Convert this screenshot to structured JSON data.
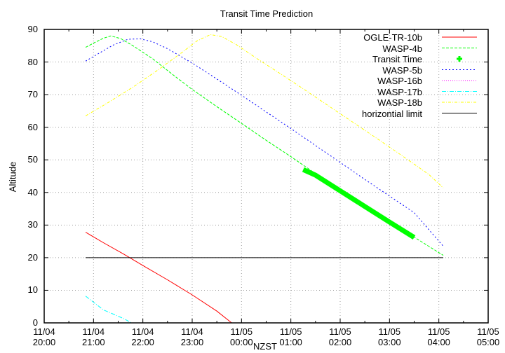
{
  "chart_data": {
    "type": "line",
    "title": "Transit Time Prediction",
    "xlabel": "NZST",
    "ylabel": "Altitude",
    "ylim": [
      0,
      90
    ],
    "xlim_hours_from_start": [
      0,
      9
    ],
    "grid": true,
    "legend_position": "top-right inside",
    "yticks": [
      "0",
      "10",
      "20",
      "30",
      "40",
      "50",
      "60",
      "70",
      "80",
      "90"
    ],
    "xticks": [
      {
        "date": "11/04",
        "time": "20:00"
      },
      {
        "date": "11/04",
        "time": "21:00"
      },
      {
        "date": "11/04",
        "time": "22:00"
      },
      {
        "date": "11/04",
        "time": "23:00"
      },
      {
        "date": "11/05",
        "time": "00:00"
      },
      {
        "date": "11/05",
        "time": "01:00"
      },
      {
        "date": "11/05",
        "time": "02:00"
      },
      {
        "date": "11/05",
        "time": "03:00"
      },
      {
        "date": "11/05",
        "time": "04:00"
      },
      {
        "date": "11/05",
        "time": "05:00"
      }
    ],
    "series": [
      {
        "name": "OGLE-TR-10b",
        "color": "#ff0000",
        "dash": "",
        "width": 1,
        "points": [
          [
            0.84,
            27.8
          ],
          [
            1.2,
            24.6
          ],
          [
            1.6,
            21.2
          ],
          [
            2.0,
            17.6
          ],
          [
            2.5,
            13.2
          ],
          [
            3.0,
            8.6
          ],
          [
            3.5,
            3.6
          ],
          [
            3.8,
            0
          ]
        ]
      },
      {
        "name": "WASP-4b",
        "color": "#00ff00",
        "dash": "4,2",
        "width": 1,
        "points": [
          [
            0.84,
            84.5
          ],
          [
            1.0,
            85.8
          ],
          [
            1.2,
            87.3
          ],
          [
            1.35,
            88.0
          ],
          [
            1.55,
            87.2
          ],
          [
            1.8,
            85.0
          ],
          [
            2.2,
            81.0
          ],
          [
            2.6,
            76.2
          ],
          [
            3.0,
            71.6
          ],
          [
            3.5,
            66.3
          ],
          [
            4.0,
            61.2
          ],
          [
            4.5,
            56.0
          ],
          [
            5.0,
            51.0
          ],
          [
            5.5,
            45.8
          ],
          [
            6.0,
            40.8
          ],
          [
            6.5,
            35.9
          ],
          [
            7.0,
            31.0
          ],
          [
            7.5,
            26.3
          ],
          [
            8.09,
            20.7
          ]
        ]
      },
      {
        "name": "Transit Time",
        "color": "#00ff00",
        "dash": "",
        "width": 7,
        "marker": "plus",
        "points": [
          [
            5.25,
            47.0
          ],
          [
            5.5,
            45.3
          ],
          [
            6.0,
            40.5
          ],
          [
            6.5,
            35.7
          ],
          [
            7.0,
            30.9
          ],
          [
            7.5,
            26.2
          ]
        ]
      },
      {
        "name": "WASP-5b",
        "color": "#0000ff",
        "dash": "2,3",
        "width": 1,
        "points": [
          [
            0.84,
            80.3
          ],
          [
            1.1,
            82.6
          ],
          [
            1.4,
            85.2
          ],
          [
            1.7,
            87.0
          ],
          [
            1.95,
            87.1
          ],
          [
            2.2,
            86.2
          ],
          [
            2.5,
            84.1
          ],
          [
            3.0,
            79.7
          ],
          [
            3.5,
            74.8
          ],
          [
            4.0,
            69.8
          ],
          [
            4.5,
            64.7
          ],
          [
            5.0,
            59.6
          ],
          [
            5.5,
            54.4
          ],
          [
            6.0,
            49.2
          ],
          [
            6.5,
            44.0
          ],
          [
            7.0,
            38.9
          ],
          [
            7.5,
            33.8
          ],
          [
            8.09,
            23.5
          ]
        ]
      },
      {
        "name": "WASP-16b",
        "color": "#ff00ff",
        "dash": "1,2",
        "width": 1,
        "points": []
      },
      {
        "name": "WASP-17b",
        "color": "#00ffff",
        "dash": "6,2,1,2",
        "width": 1,
        "points": [
          [
            0.84,
            8.2
          ],
          [
            1.2,
            4.0
          ],
          [
            1.6,
            1.4
          ],
          [
            1.77,
            0
          ]
        ]
      },
      {
        "name": "WASP-18b",
        "color": "#ffff00",
        "dash": "4,2,1,2",
        "width": 1,
        "points": [
          [
            0.84,
            63.5
          ],
          [
            1.3,
            67.6
          ],
          [
            1.8,
            72.3
          ],
          [
            2.3,
            77.5
          ],
          [
            2.8,
            83.0
          ],
          [
            3.1,
            86.5
          ],
          [
            3.37,
            88.4
          ],
          [
            3.6,
            87.8
          ],
          [
            3.9,
            85.3
          ],
          [
            4.3,
            81.2
          ],
          [
            4.8,
            76.3
          ],
          [
            5.3,
            71.3
          ],
          [
            5.8,
            66.2
          ],
          [
            6.3,
            61.1
          ],
          [
            6.8,
            56.0
          ],
          [
            7.3,
            50.8
          ],
          [
            7.8,
            45.5
          ],
          [
            8.09,
            41.4
          ]
        ]
      },
      {
        "name": "horizontial limit",
        "color": "#000000",
        "dash": "",
        "width": 1,
        "points": [
          [
            0.84,
            20
          ],
          [
            8.09,
            20
          ]
        ]
      }
    ]
  },
  "legend": {
    "items": [
      {
        "label": "OGLE-TR-10b"
      },
      {
        "label": "WASP-4b"
      },
      {
        "label": "Transit Time"
      },
      {
        "label": "WASP-5b"
      },
      {
        "label": "WASP-16b"
      },
      {
        "label": "WASP-17b"
      },
      {
        "label": "WASP-18b"
      },
      {
        "label": "horizontial limit"
      }
    ]
  }
}
